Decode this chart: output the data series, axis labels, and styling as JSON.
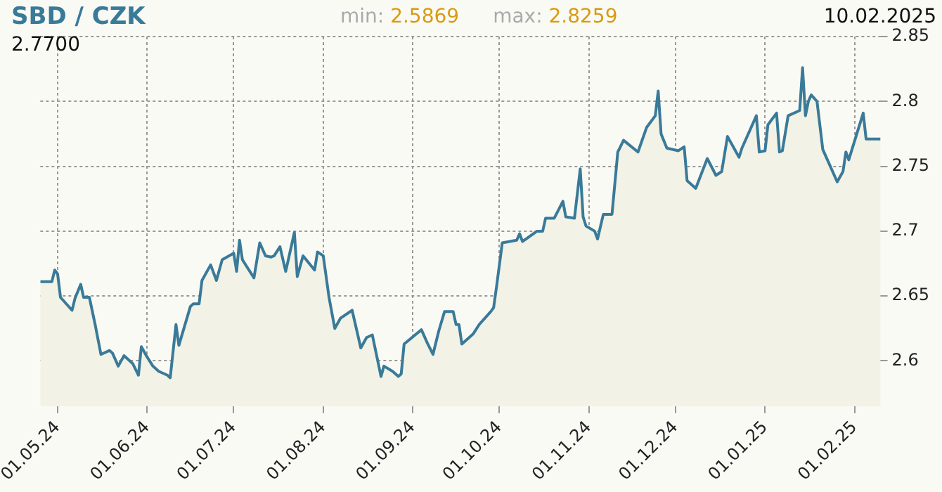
{
  "chart_data": {
    "type": "area",
    "title": "SBD / CZK",
    "annotations": [
      "min:",
      "2.5869",
      "max:",
      "2.8259",
      "10.02.2025",
      "2.7700"
    ],
    "x": [
      "2024-04-25",
      "2024-04-29",
      "2024-04-30",
      "2024-05-01",
      "2024-05-02",
      "2024-05-06",
      "2024-05-07",
      "2024-05-09",
      "2024-05-10",
      "2024-05-12",
      "2024-05-14",
      "2024-05-16",
      "2024-05-19",
      "2024-05-20",
      "2024-05-22",
      "2024-05-24",
      "2024-05-27",
      "2024-05-29",
      "2024-05-30",
      "2024-06-01",
      "2024-06-03",
      "2024-06-05",
      "2024-06-08",
      "2024-06-09",
      "2024-06-11",
      "2024-06-12",
      "2024-06-16",
      "2024-06-17",
      "2024-06-19",
      "2024-06-20",
      "2024-06-23",
      "2024-06-25",
      "2024-06-27",
      "2024-07-01",
      "2024-07-02",
      "2024-07-03",
      "2024-07-04",
      "2024-07-08",
      "2024-07-10",
      "2024-07-12",
      "2024-07-14",
      "2024-07-15",
      "2024-07-17",
      "2024-07-19",
      "2024-07-22",
      "2024-07-23",
      "2024-07-25",
      "2024-07-29",
      "2024-07-30",
      "2024-08-01",
      "2024-08-03",
      "2024-08-05",
      "2024-08-07",
      "2024-08-11",
      "2024-08-14",
      "2024-08-16",
      "2024-08-18",
      "2024-08-21",
      "2024-08-22",
      "2024-08-25",
      "2024-08-27",
      "2024-08-28",
      "2024-08-29",
      "2024-09-04",
      "2024-09-06",
      "2024-09-08",
      "2024-09-10",
      "2024-09-12",
      "2024-09-15",
      "2024-09-16",
      "2024-09-17",
      "2024-09-18",
      "2024-09-21",
      "2024-09-22",
      "2024-09-24",
      "2024-09-28",
      "2024-09-29",
      "2024-09-30",
      "2024-10-02",
      "2024-10-07",
      "2024-10-08",
      "2024-10-09",
      "2024-10-14",
      "2024-10-16",
      "2024-10-17",
      "2024-10-20",
      "2024-10-23",
      "2024-10-24",
      "2024-10-27",
      "2024-10-29",
      "2024-10-30",
      "2024-10-31",
      "2024-11-03",
      "2024-11-04",
      "2024-11-06",
      "2024-11-09",
      "2024-11-11",
      "2024-11-13",
      "2024-11-18",
      "2024-11-21",
      "2024-11-24",
      "2024-11-25",
      "2024-11-26",
      "2024-11-28",
      "2024-12-02",
      "2024-12-04",
      "2024-12-05",
      "2024-12-08",
      "2024-12-12",
      "2024-12-15",
      "2024-12-17",
      "2024-12-19",
      "2024-12-23",
      "2024-12-24",
      "2024-12-29",
      "2024-12-30",
      "2025-01-01",
      "2025-01-02",
      "2025-01-05",
      "2025-01-06",
      "2025-01-07",
      "2025-01-09",
      "2025-01-13",
      "2025-01-14",
      "2025-01-15",
      "2025-01-16",
      "2025-01-17",
      "2025-01-19",
      "2025-01-21",
      "2025-01-26",
      "2025-01-28",
      "2025-01-29",
      "2025-01-30",
      "2025-02-04",
      "2025-02-05",
      "2025-02-10"
    ],
    "series": [
      {
        "color": "#3a7a99",
        "values": [
          2.661,
          2.661,
          2.67,
          2.667,
          2.649,
          2.639,
          2.648,
          2.659,
          2.649,
          2.649,
          2.628,
          2.605,
          2.608,
          2.606,
          2.596,
          2.604,
          2.598,
          2.589,
          2.611,
          2.603,
          2.596,
          2.592,
          2.589,
          2.587,
          2.628,
          2.612,
          2.642,
          2.644,
          2.644,
          2.662,
          2.674,
          2.662,
          2.678,
          2.683,
          2.669,
          2.693,
          2.678,
          2.664,
          2.691,
          2.681,
          2.68,
          2.681,
          2.688,
          2.669,
          2.699,
          2.665,
          2.681,
          2.67,
          2.684,
          2.681,
          2.649,
          2.625,
          2.633,
          2.639,
          2.61,
          2.618,
          2.62,
          2.588,
          2.596,
          2.592,
          2.588,
          2.59,
          2.613,
          2.624,
          2.614,
          2.605,
          2.623,
          2.638,
          2.638,
          2.628,
          2.628,
          2.613,
          2.619,
          2.621,
          2.628,
          2.638,
          2.641,
          2.657,
          2.691,
          2.693,
          2.698,
          2.692,
          2.7,
          2.7,
          2.71,
          2.71,
          2.723,
          2.711,
          2.71,
          2.748,
          2.711,
          2.704,
          2.7,
          2.694,
          2.713,
          2.713,
          2.761,
          2.77,
          2.761,
          2.78,
          2.789,
          2.808,
          2.775,
          2.764,
          2.762,
          2.765,
          2.739,
          2.733,
          2.756,
          2.743,
          2.746,
          2.773,
          2.757,
          2.764,
          2.789,
          2.761,
          2.762,
          2.782,
          2.791,
          2.761,
          2.762,
          2.789,
          2.793,
          2.826,
          2.789,
          2.8,
          2.805,
          2.8,
          2.763,
          2.738,
          2.746,
          2.761,
          2.755,
          2.791,
          2.771,
          2.771
        ]
      }
    ],
    "xlim": [
      "2024-04-25",
      "2025-02-10"
    ],
    "xticks": [
      {
        "value": "2024-05-01",
        "label": "01.05.24"
      },
      {
        "value": "2024-06-01",
        "label": "01.06.24"
      },
      {
        "value": "2024-07-01",
        "label": "01.07.24"
      },
      {
        "value": "2024-08-01",
        "label": "01.08.24"
      },
      {
        "value": "2024-09-01",
        "label": "01.09.24"
      },
      {
        "value": "2024-10-01",
        "label": "01.10.24"
      },
      {
        "value": "2024-11-01",
        "label": "01.11.24"
      },
      {
        "value": "2024-12-01",
        "label": "01.12.24"
      },
      {
        "value": "2025-01-01",
        "label": "01.01.25"
      },
      {
        "value": "2025-02-01",
        "label": "01.02.25"
      }
    ],
    "ylim": [
      2.565,
      2.85
    ],
    "yticks": [
      2.6,
      2.65,
      2.7,
      2.75,
      2.8,
      2.85
    ],
    "grid": true,
    "legend": false
  }
}
